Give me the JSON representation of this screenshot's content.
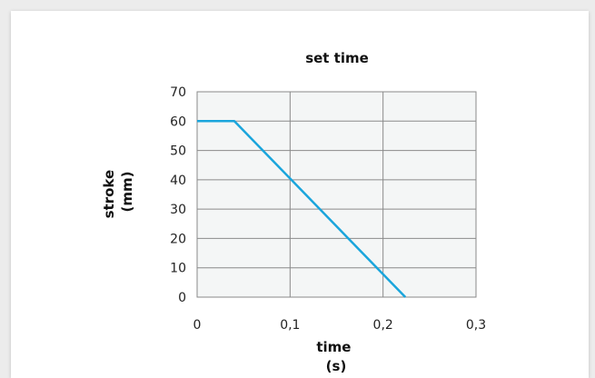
{
  "chart_data": {
    "type": "line",
    "title": "set time",
    "xlabel": [
      "time",
      "(s)"
    ],
    "ylabel": [
      "stroke",
      "(mm)"
    ],
    "x_ticks": [
      "0",
      "0,1",
      "0,2",
      "0,3"
    ],
    "x_tick_values": [
      0,
      0.1,
      0.2,
      0.3
    ],
    "y_ticks": [
      "0",
      "10",
      "20",
      "30",
      "40",
      "50",
      "60",
      "70"
    ],
    "y_tick_values": [
      0,
      10,
      20,
      30,
      40,
      50,
      60,
      70
    ],
    "xlim": [
      0,
      0.3
    ],
    "ylim": [
      0,
      70
    ],
    "grid": true,
    "series": [
      {
        "color": "#1aa5dc",
        "points": [
          {
            "x": 0,
            "y": 60
          },
          {
            "x": 0.04,
            "y": 60
          },
          {
            "x": 0.224,
            "y": 0
          }
        ]
      }
    ]
  },
  "colors": {
    "plot_background": "#f4f6f6",
    "grid": "#8a8a8a",
    "line": "#1aa5dc"
  }
}
